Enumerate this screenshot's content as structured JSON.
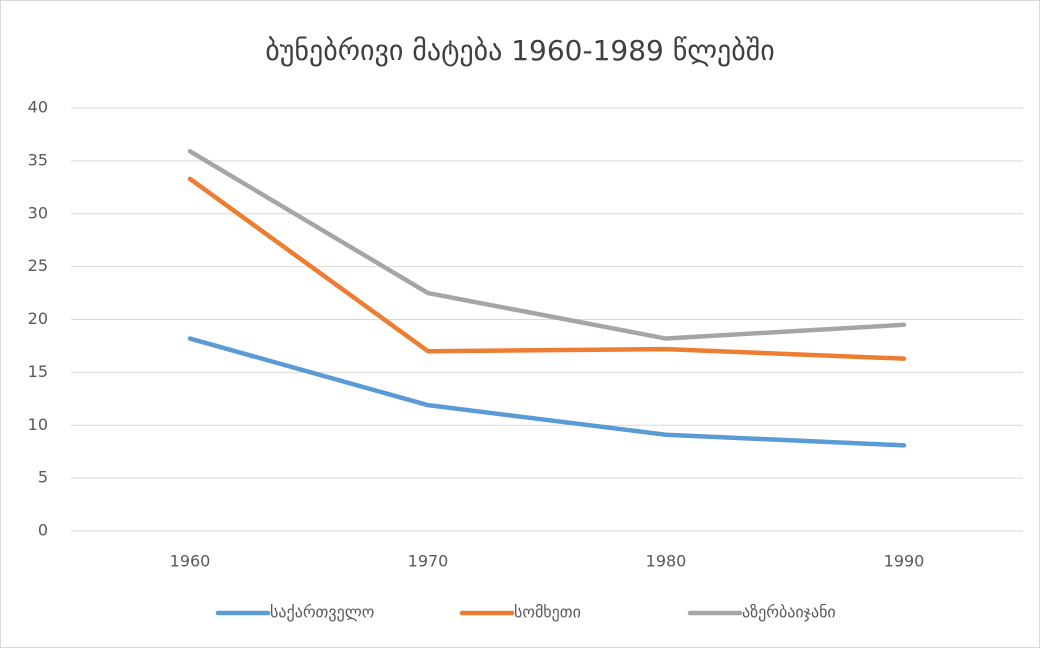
{
  "chart_data": {
    "type": "line",
    "title": "ბუნებრივი მატება 1960-1989 წლებში",
    "categories": [
      "1960",
      "1970",
      "1980",
      "1990"
    ],
    "series": [
      {
        "name": "საქართველო",
        "color": "#5b9bd5",
        "values": [
          18.2,
          11.9,
          9.1,
          8.1
        ]
      },
      {
        "name": "სომხეთი",
        "color": "#ed7d31",
        "values": [
          33.3,
          17.0,
          17.2,
          16.3
        ]
      },
      {
        "name": "აზერბაიჯანი",
        "color": "#a5a5a5",
        "values": [
          35.9,
          22.5,
          18.2,
          19.5
        ]
      }
    ],
    "ylim": [
      0,
      40
    ],
    "yticks": [
      0,
      5,
      10,
      15,
      20,
      25,
      30,
      35,
      40
    ],
    "grid": true,
    "legend": "bottom"
  }
}
